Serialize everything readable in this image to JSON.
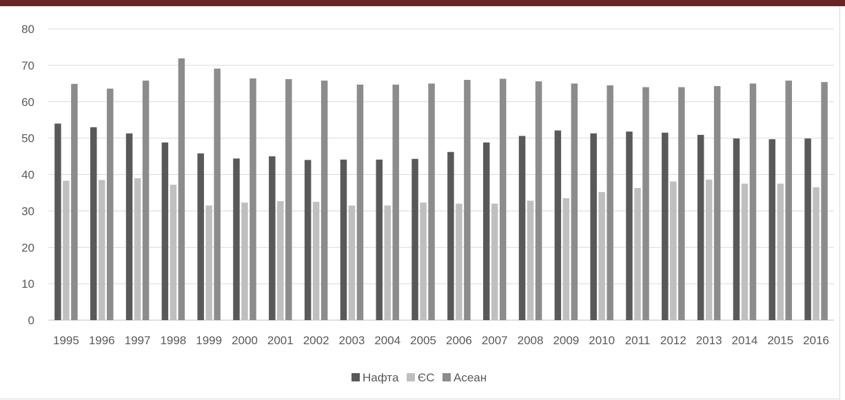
{
  "colors": {
    "top_bar": "#6b2424",
    "grid": "#d9d9d9",
    "axis": "#bfbfbf"
  },
  "chart_data": {
    "type": "bar",
    "title": "",
    "xlabel": "",
    "ylabel": "",
    "ylim": [
      0,
      80
    ],
    "yticks": [
      0,
      10,
      20,
      30,
      40,
      50,
      60,
      70,
      80
    ],
    "grid": true,
    "legend_position": "bottom",
    "categories": [
      "1995",
      "1996",
      "1997",
      "1998",
      "1999",
      "2000",
      "2001",
      "2002",
      "2003",
      "2004",
      "2005",
      "2006",
      "2007",
      "2008",
      "2009",
      "2010",
      "2011",
      "2012",
      "2013",
      "2014",
      "2015",
      "2016"
    ],
    "series": [
      {
        "name": "Нафта",
        "color": "#595959",
        "values": [
          54.0,
          53.0,
          51.3,
          48.8,
          45.8,
          44.4,
          45.0,
          44.0,
          44.1,
          44.1,
          44.3,
          46.2,
          48.8,
          50.6,
          52.1,
          51.3,
          51.8,
          51.5,
          50.9,
          49.9,
          49.7,
          49.9
        ]
      },
      {
        "name": "ЄС",
        "color": "#bfbfbf",
        "values": [
          38.3,
          38.5,
          39.0,
          37.2,
          31.5,
          32.3,
          32.7,
          32.5,
          31.5,
          31.5,
          32.3,
          32.0,
          32.0,
          32.8,
          33.5,
          35.2,
          36.3,
          38.1,
          38.6,
          37.5,
          37.5,
          36.5
        ]
      },
      {
        "name": "Асеан",
        "color": "#8c8c8c",
        "values": [
          64.9,
          63.6,
          65.8,
          71.9,
          69.1,
          66.4,
          66.2,
          65.8,
          64.7,
          64.7,
          65.0,
          66.0,
          66.3,
          65.6,
          65.0,
          64.5,
          64.0,
          64.0,
          64.3,
          65.0,
          65.8,
          65.4
        ]
      }
    ]
  }
}
